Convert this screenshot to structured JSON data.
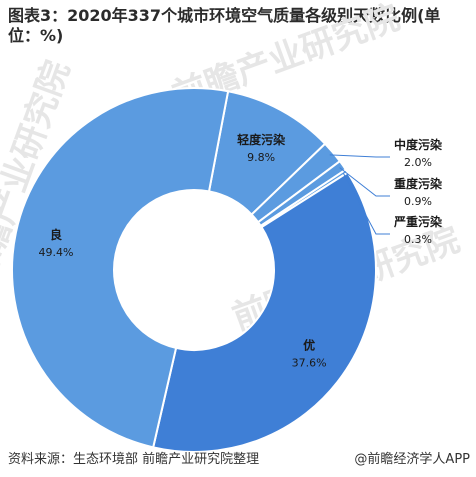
{
  "title": "图表3：2020年337个城市环境空气质量各级别天数比例(单位：%)",
  "source": "资料来源：生态环境部 前瞻产业研究院整理",
  "brand": "@前瞻经济学人APP",
  "watermark": "前瞻产业研究院",
  "colors": {
    "light": "#5b9be0",
    "dark": "#3f7fd6",
    "line": "#3f7fd6",
    "text": "#1a1a1a"
  },
  "chart_data": {
    "type": "pie",
    "donut": true,
    "title": "图表3：2020年337个城市环境空气质量各级别天数比例(单位：%)",
    "slices": [
      {
        "label": "优",
        "value": 37.6,
        "display": "37.6%"
      },
      {
        "label": "良",
        "value": 49.4,
        "display": "49.4%"
      },
      {
        "label": "轻度污染",
        "value": 9.8,
        "display": "9.8%"
      },
      {
        "label": "中度污染",
        "value": 2.0,
        "display": "2.0%"
      },
      {
        "label": "重度污染",
        "value": 0.9,
        "display": "0.9%"
      },
      {
        "label": "严重污染",
        "value": 0.3,
        "display": "0.3%"
      }
    ]
  }
}
